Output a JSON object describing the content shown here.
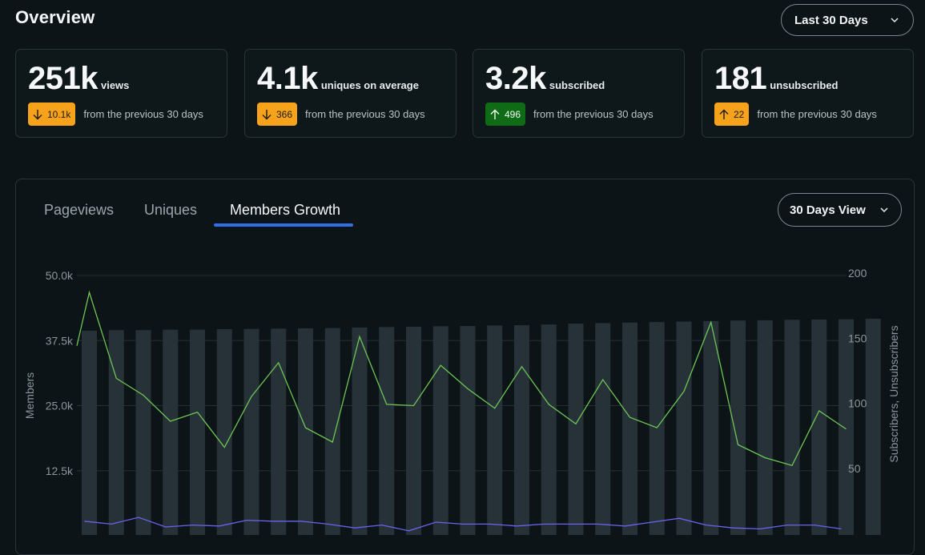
{
  "header": {
    "title": "Overview",
    "range_label": "Last 30 Days"
  },
  "stats": [
    {
      "value": "251k",
      "label": "views",
      "delta": "10.1k",
      "direction": "down",
      "badge_color": "#f7a21b",
      "note": "from the previous 30 days"
    },
    {
      "value": "4.1k",
      "label": "uniques on average",
      "delta": "366",
      "direction": "down",
      "badge_color": "#f7a21b",
      "note": "from the previous 30 days"
    },
    {
      "value": "3.2k",
      "label": "subscribed",
      "delta": "496",
      "direction": "up",
      "badge_color": "#0f6b16",
      "note": "from the previous 30 days"
    },
    {
      "value": "181",
      "label": "unsubscribed",
      "delta": "22",
      "direction": "up",
      "badge_color": "#f7a21b",
      "note": "from the previous 30 days"
    }
  ],
  "tabs": {
    "pageviews": "Pageviews",
    "uniques": "Uniques",
    "members_growth": "Members Growth",
    "active": "members_growth"
  },
  "view_selector": {
    "label": "30 Days View"
  },
  "chart_data": {
    "type": "bar+line",
    "left_axis": {
      "title": "Members",
      "ticks": [
        "50.0k",
        "37.5k",
        "25.0k",
        "12.5k"
      ],
      "range": [
        0,
        50000
      ]
    },
    "right_axis": {
      "title": "Subscribers, Unsubscribers",
      "ticks": [
        "200",
        "150",
        "100",
        "50"
      ],
      "range": [
        0,
        200
      ]
    },
    "grid": true,
    "members": [
      39400,
      39500,
      39500,
      39600,
      39600,
      39700,
      39750,
      39800,
      39850,
      39900,
      40000,
      40100,
      40150,
      40250,
      40300,
      40400,
      40450,
      40600,
      40750,
      40850,
      40950,
      41050,
      41150,
      41250,
      41350,
      41400,
      41500,
      41550,
      41600,
      41700
    ],
    "subscribers": [
      187,
      121,
      108,
      88,
      95,
      68,
      107,
      133,
      83,
      72,
      153,
      101,
      100,
      131,
      113,
      98,
      130,
      101,
      86,
      120,
      91,
      83,
      111,
      164,
      70,
      60,
      54,
      96,
      82
    ],
    "subscribers_start": 146,
    "unsubscribers": [
      6,
      3,
      10,
      0,
      2,
      1,
      7,
      6,
      6,
      3,
      -1,
      2,
      -4,
      5,
      3,
      3,
      1,
      3,
      3,
      3,
      1,
      5,
      9,
      2,
      -1,
      -2,
      2,
      2,
      -2
    ],
    "colors": {
      "bars": "#263238",
      "subscribers": "#6cc654",
      "unsubscribers": "#6a63f0",
      "grid": "#233034"
    }
  }
}
